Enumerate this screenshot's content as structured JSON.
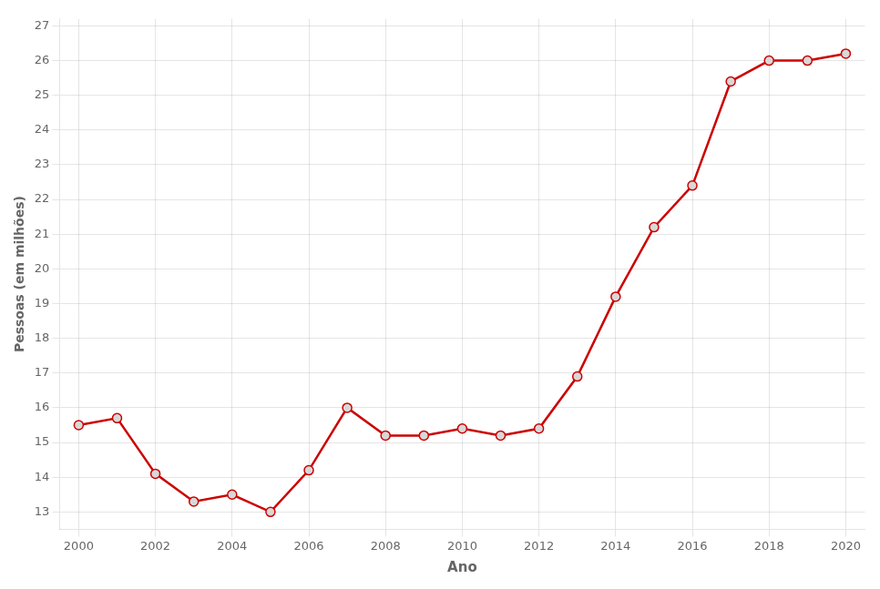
{
  "chart_data": {
    "type": "line",
    "xlabel": "Ano",
    "ylabel": "Pessoas (em milhões)",
    "x": [
      2000,
      2001,
      2002,
      2003,
      2004,
      2005,
      2006,
      2007,
      2008,
      2009,
      2010,
      2011,
      2012,
      2013,
      2014,
      2015,
      2016,
      2017,
      2018,
      2019,
      2020
    ],
    "values": [
      15.5,
      15.7,
      14.1,
      13.3,
      13.5,
      13.0,
      14.2,
      16.0,
      15.2,
      15.2,
      15.4,
      15.2,
      15.4,
      16.9,
      19.2,
      21.2,
      22.4,
      25.4,
      26.0,
      26.0,
      26.2
    ],
    "color": "#cc0000",
    "marker": "circle",
    "xlim": [
      1999.5,
      2020.5
    ],
    "ylim": [
      12.5,
      27.2
    ],
    "xticks": [
      2000,
      2002,
      2004,
      2006,
      2008,
      2010,
      2012,
      2014,
      2016,
      2018,
      2020
    ],
    "yticks": [
      13,
      14,
      15,
      16,
      17,
      18,
      19,
      20,
      21,
      22,
      23,
      24,
      25,
      26,
      27
    ],
    "grid": true
  }
}
